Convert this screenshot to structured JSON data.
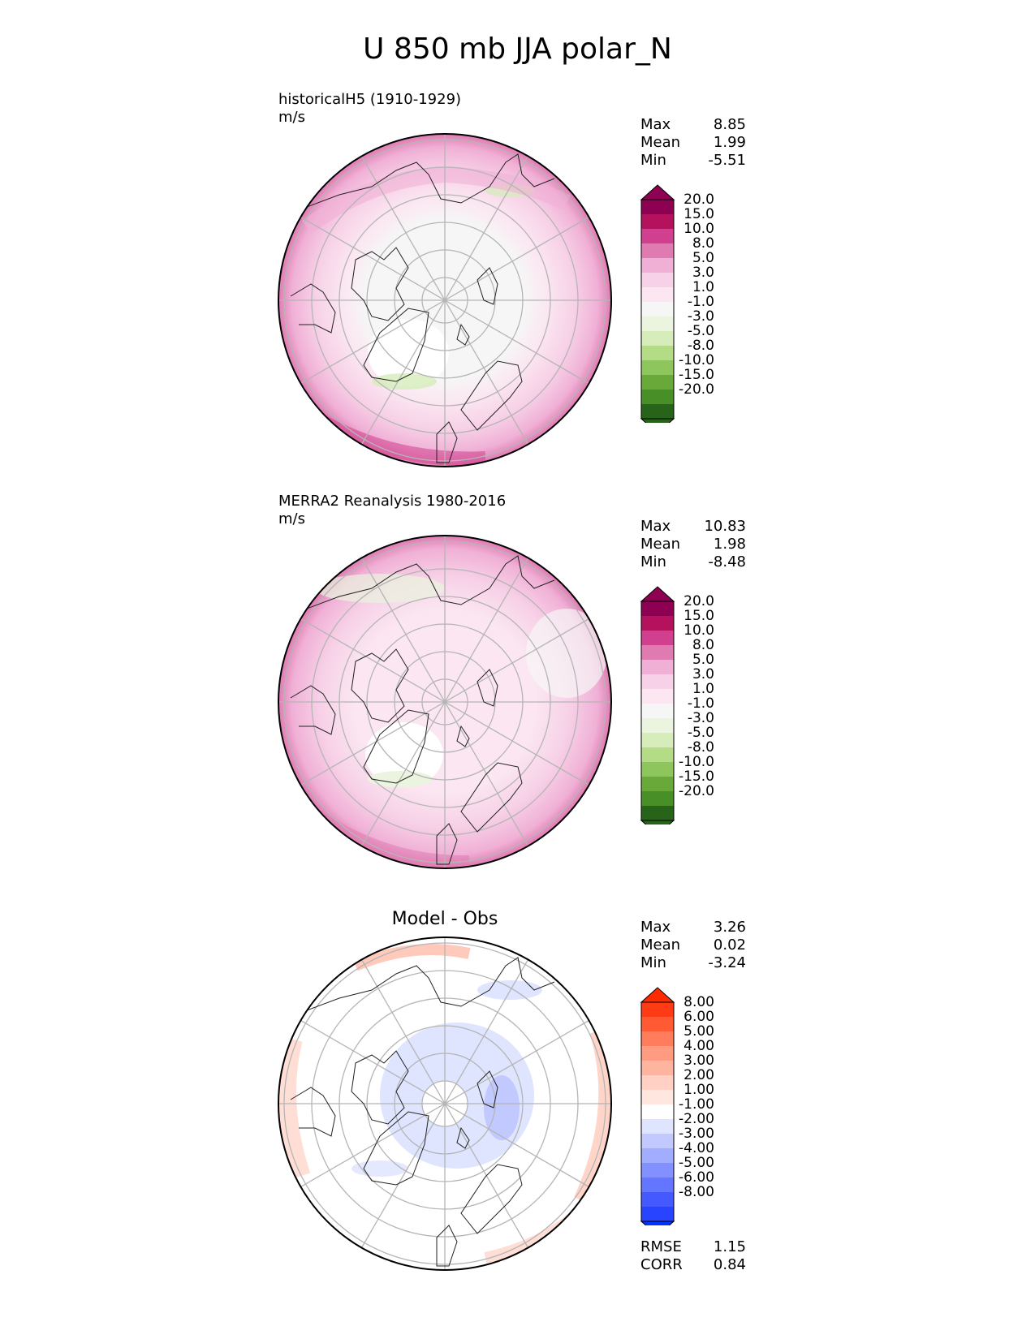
{
  "title": "U 850 mb JJA polar_N",
  "panels": [
    {
      "id": "test",
      "title_line1": "historicalH5 (1910-1929)",
      "units": "m/s",
      "stats": [
        {
          "label": "Max",
          "value": "8.85"
        },
        {
          "label": "Mean",
          "value": "1.99"
        },
        {
          "label": "Min",
          "value": "-5.51"
        }
      ]
    },
    {
      "id": "ref",
      "title_line1": "MERRA2 Reanalysis 1980-2016",
      "units": "m/s",
      "stats": [
        {
          "label": "Max",
          "value": "10.83"
        },
        {
          "label": "Mean",
          "value": "1.98"
        },
        {
          "label": "Min",
          "value": "-8.48"
        }
      ]
    },
    {
      "id": "diff",
      "title": "Model - Obs",
      "stats": [
        {
          "label": "Max",
          "value": "3.26"
        },
        {
          "label": "Mean",
          "value": "0.02"
        },
        {
          "label": "Min",
          "value": "-3.24"
        }
      ],
      "metrics": [
        {
          "label": "RMSE",
          "value": "1.15"
        },
        {
          "label": "CORR",
          "value": "0.84"
        }
      ]
    }
  ],
  "colorbars": {
    "field": {
      "labels": [
        "20.0",
        "15.0",
        "10.0",
        "8.0",
        "5.0",
        "3.0",
        "1.0",
        "-1.0",
        "-3.0",
        "-5.0",
        "-8.0",
        "-10.0",
        "-15.0",
        "-20.0"
      ],
      "colors": [
        "#8e0152",
        "#b5125e",
        "#d0408e",
        "#e07bb2",
        "#f0b0d6",
        "#f7d1e7",
        "#fbe6f1",
        "#f6f6f6",
        "#eaf4de",
        "#d6ecba",
        "#b4dc86",
        "#8ec55c",
        "#69a93a",
        "#478f26",
        "#276419"
      ],
      "extend_top": "#8e0152",
      "extend_bottom": "#276419"
    },
    "diff": {
      "labels": [
        "8.00",
        "6.00",
        "5.00",
        "4.00",
        "3.00",
        "2.00",
        "1.00",
        "-1.00",
        "-2.00",
        "-3.00",
        "-4.00",
        "-5.00",
        "-6.00",
        "-8.00"
      ],
      "colors": [
        "#ff3b16",
        "#ff5a34",
        "#ff7d5c",
        "#ff9b80",
        "#ffb4a0",
        "#ffd0c3",
        "#ffe6de",
        "#ffffff",
        "#dfe4ff",
        "#c1c9ff",
        "#a2adff",
        "#8291ff",
        "#6475ff",
        "#4459ff",
        "#2844ff"
      ],
      "extend_top": "#ff2a00",
      "extend_bottom": "#0033ff"
    }
  }
}
